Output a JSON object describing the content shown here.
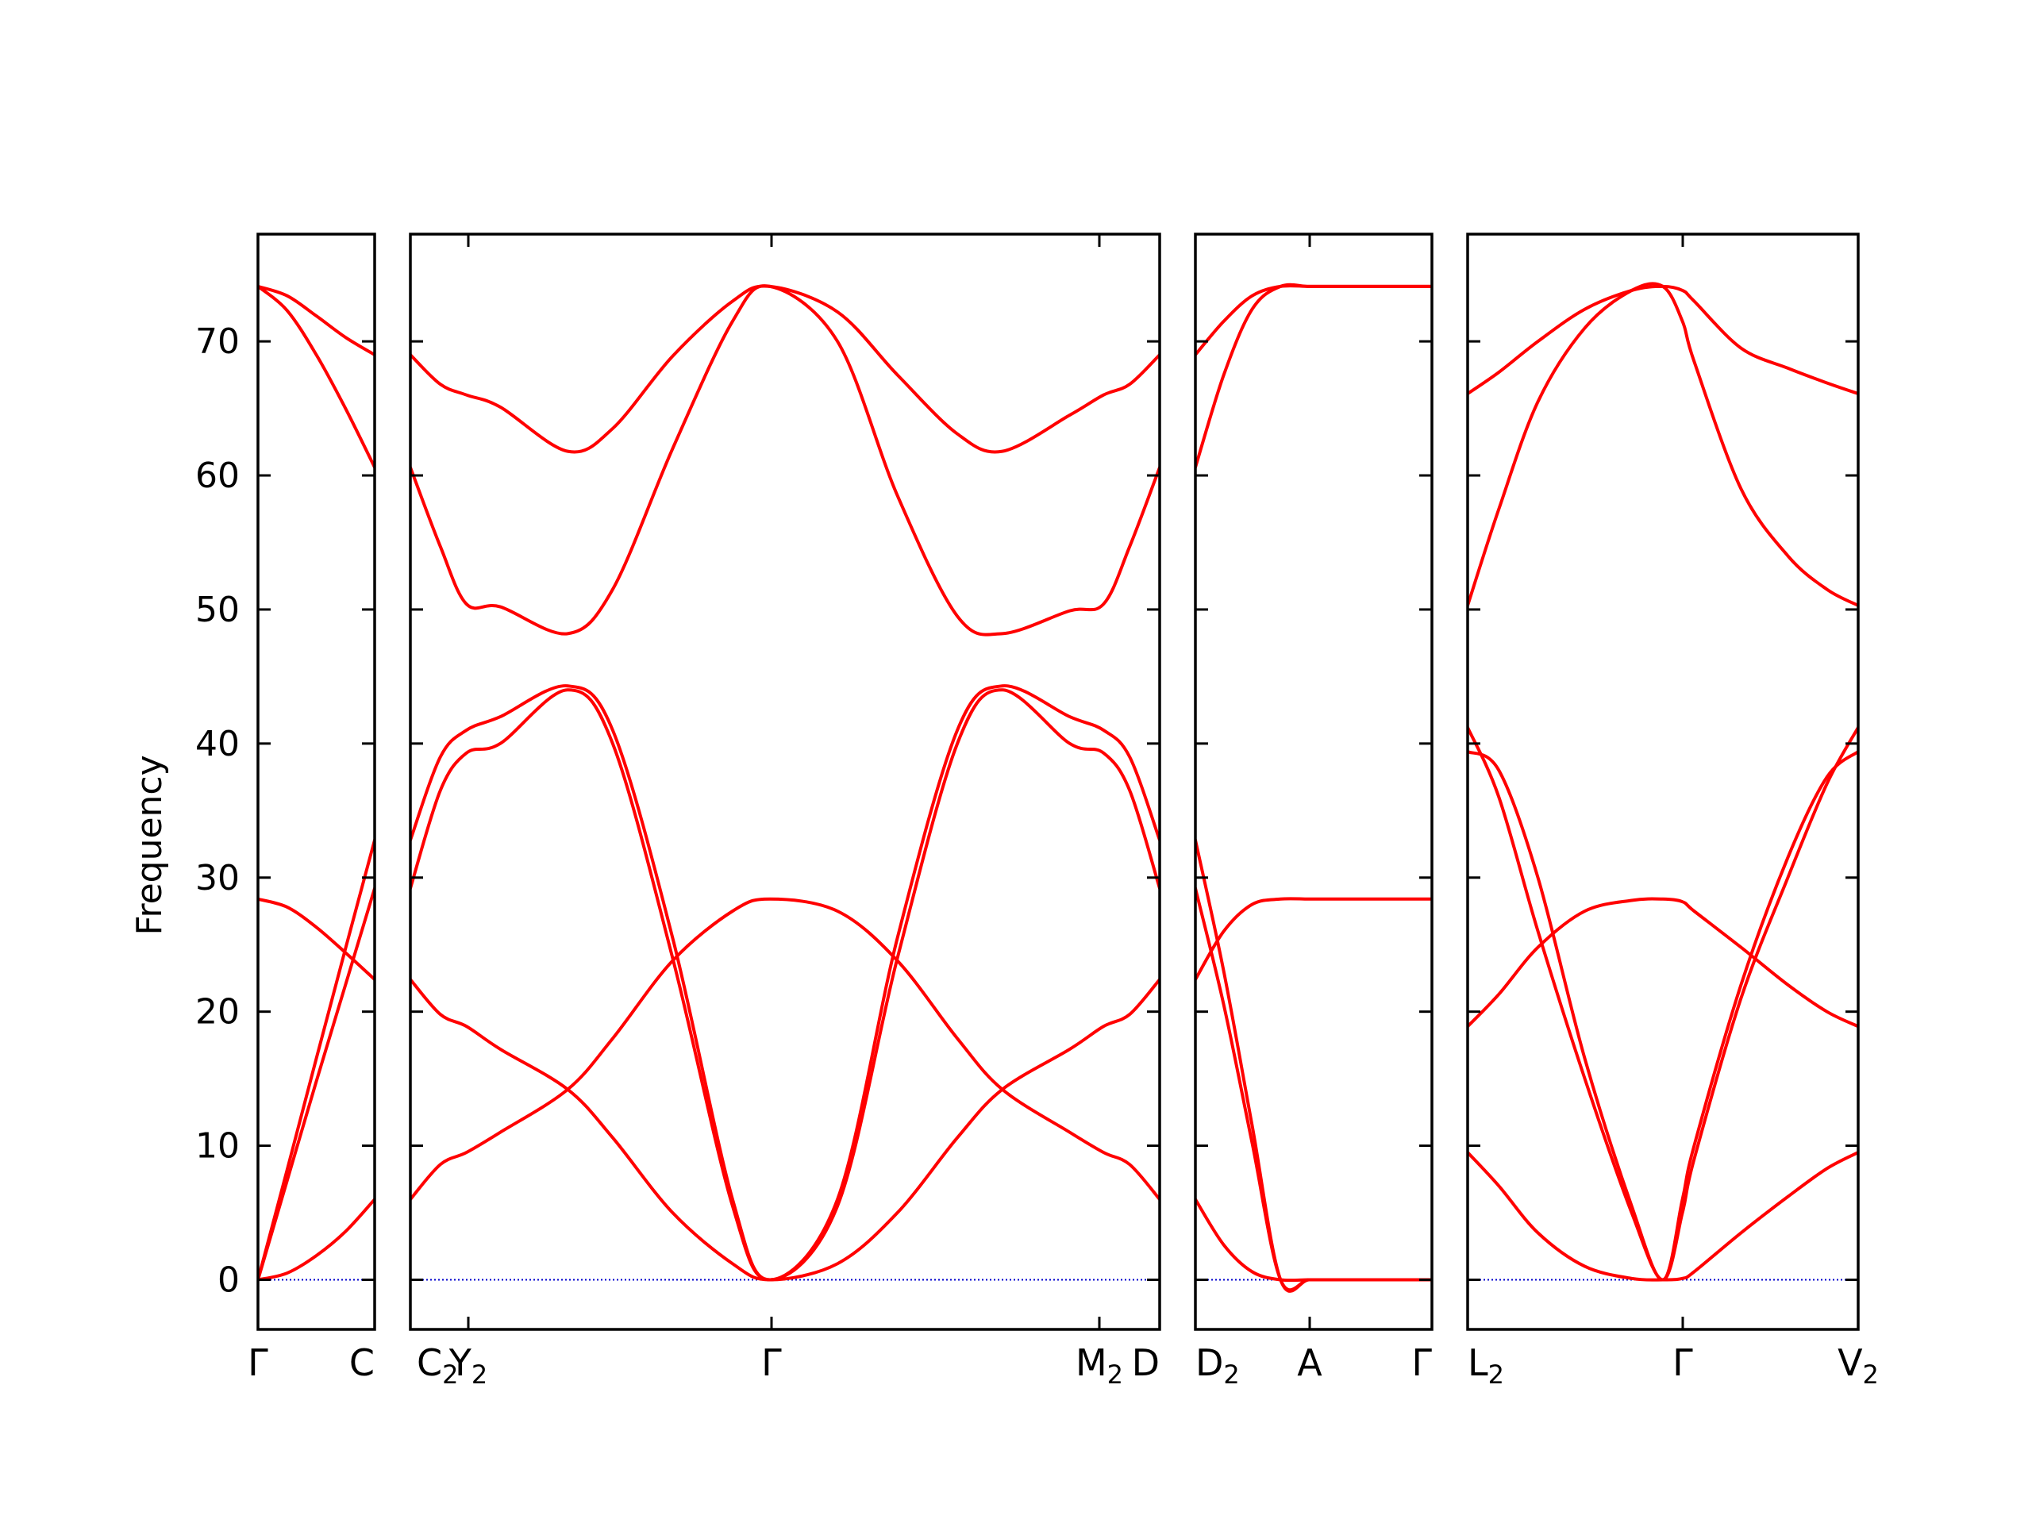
{
  "chart_data": {
    "type": "line",
    "title": "",
    "ylabel": "Frequency",
    "ylim": [
      -3.7,
      78
    ],
    "y_ticks": [
      0,
      10,
      20,
      30,
      40,
      50,
      60,
      70
    ],
    "y_tick_labels": [
      "0",
      "10",
      "20",
      "30",
      "40",
      "50",
      "60",
      "70"
    ],
    "band_color": "#ff0000",
    "zero_line_color": "#0000cc",
    "high_symmetry_labels": [
      {
        "text": "Γ",
        "sub": ""
      },
      {
        "text": "C",
        "sub": ""
      },
      {
        "text": "C",
        "sub": "2"
      },
      {
        "text": "Y",
        "sub": "2"
      },
      {
        "text": "Γ",
        "sub": ""
      },
      {
        "text": "M",
        "sub": "2"
      },
      {
        "text": "D",
        "sub": ""
      },
      {
        "text": "D",
        "sub": "2"
      },
      {
        "text": "A",
        "sub": ""
      },
      {
        "text": "Γ",
        "sub": ""
      },
      {
        "text": "L",
        "sub": "2"
      },
      {
        "text": "Γ",
        "sub": ""
      },
      {
        "text": "V",
        "sub": "2"
      }
    ],
    "panels": [
      {
        "name": "Γ–C",
        "x": [
          0,
          0.25,
          0.5,
          0.75,
          1
        ],
        "series": [
          {
            "values": [
              74.1,
              73.4,
              71.9,
              70.3,
              69.0
            ]
          },
          {
            "values": [
              74.1,
              72.3,
              69.0,
              65.0,
              60.6
            ]
          },
          {
            "values": [
              28.4,
              27.8,
              26.3,
              24.4,
              22.4
            ]
          },
          {
            "values": [
              0,
              8.2,
              16.5,
              24.7,
              32.8
            ]
          },
          {
            "values": [
              0,
              7.4,
              14.8,
              22.0,
              29.2
            ]
          },
          {
            "values": [
              0,
              0.5,
              1.8,
              3.6,
              6.0
            ]
          }
        ]
      },
      {
        "name": "C₂–Y₂–Γ–M₂–D",
        "x": [
          0,
          0.04,
          0.075,
          0.12,
          0.21,
          0.27,
          0.35,
          0.43,
          0.48,
          0.57,
          0.65,
          0.73,
          0.79,
          0.88,
          0.925,
          0.96,
          1
        ],
        "series": [
          {
            "values": [
              69.0,
              66.8,
              66.0,
              65.1,
              61.8,
              63.5,
              68.9,
              73.0,
              74.1,
              72.2,
              67.5,
              63.1,
              61.8,
              64.5,
              66.0,
              66.8,
              69.0
            ]
          },
          {
            "values": [
              60.6,
              54.7,
              50.4,
              50.2,
              48.2,
              51.5,
              62.0,
              71.5,
              74.1,
              70.0,
              58.5,
              49.5,
              48.2,
              49.9,
              50.4,
              54.7,
              60.6
            ]
          },
          {
            "values": [
              32.8,
              39.0,
              41.0,
              42.0,
              44.3,
              41.0,
              25.5,
              6.0,
              0,
              6.0,
              25.5,
              41.0,
              44.3,
              42.0,
              41.0,
              39.0,
              32.8
            ]
          },
          {
            "values": [
              29.2,
              36.5,
              39.3,
              40.0,
              44.0,
              40.0,
              24.0,
              5.5,
              0,
              5.5,
              24.0,
              40.0,
              44.0,
              40.0,
              39.3,
              36.5,
              29.2
            ]
          },
          {
            "values": [
              22.4,
              19.8,
              18.9,
              17.2,
              14.2,
              10.6,
              5.0,
              1.2,
              0,
              1.2,
              5.0,
              10.6,
              14.2,
              17.2,
              18.9,
              19.8,
              22.4
            ]
          },
          {
            "values": [
              6.0,
              8.6,
              9.5,
              11.0,
              14.2,
              18.0,
              23.8,
              27.5,
              28.4,
              27.5,
              23.8,
              18.0,
              14.2,
              11.0,
              9.5,
              8.6,
              6.0
            ]
          }
        ]
      },
      {
        "name": "D₂–A–Γ",
        "x": [
          0,
          0.12,
          0.24,
          0.36,
          0.48,
          0.6,
          0.72,
          0.84,
          1
        ],
        "series": [
          {
            "values": [
              69.0,
              71.5,
              73.4,
              74.1,
              74.1,
              74.1,
              74.1,
              74.1,
              74.1
            ]
          },
          {
            "values": [
              60.6,
              67.5,
              72.4,
              74.1,
              74.1,
              74.1,
              74.1,
              74.1,
              74.1
            ]
          },
          {
            "values": [
              32.8,
              23.0,
              11.5,
              0,
              0,
              0,
              0,
              0,
              0
            ]
          },
          {
            "values": [
              29.2,
              20.5,
              10.2,
              0,
              0,
              0,
              0,
              0,
              0
            ]
          },
          {
            "values": [
              22.4,
              26.0,
              28.0,
              28.4,
              28.4,
              28.4,
              28.4,
              28.4,
              28.4
            ]
          },
          {
            "values": [
              6.0,
              2.6,
              0.6,
              0,
              0,
              0,
              0,
              0,
              0
            ]
          }
        ]
      },
      {
        "name": "L₂–Γ–V₂",
        "x": [
          0,
          0.08,
          0.18,
          0.3,
          0.42,
          0.5,
          0.55,
          0.58,
          0.7,
          0.82,
          0.92,
          1
        ],
        "series": [
          {
            "values": [
              66.1,
              67.7,
              70.0,
              72.4,
              73.8,
              74.1,
              73.8,
              73.0,
              69.5,
              68.0,
              66.9,
              66.1
            ]
          },
          {
            "values": [
              50.3,
              57.5,
              65.5,
              71.0,
              73.8,
              74.1,
              71.5,
              68.5,
              59.0,
              54.0,
              51.5,
              50.3
            ]
          },
          {
            "values": [
              41.2,
              36.0,
              26.0,
              15.0,
              5.0,
              0,
              5.0,
              9.0,
              21.0,
              30.0,
              37.0,
              41.2
            ]
          },
          {
            "values": [
              39.4,
              38.0,
              30.0,
              16.5,
              5.5,
              0,
              6.0,
              10.0,
              22.0,
              31.5,
              37.5,
              39.4
            ]
          },
          {
            "values": [
              18.9,
              21.3,
              24.8,
              27.5,
              28.3,
              28.4,
              28.2,
              27.5,
              24.8,
              22.0,
              20.0,
              18.9
            ]
          },
          {
            "values": [
              9.5,
              7.0,
              3.5,
              1.0,
              0.1,
              0,
              0.1,
              0.6,
              3.5,
              6.2,
              8.3,
              9.5
            ]
          }
        ]
      }
    ]
  }
}
